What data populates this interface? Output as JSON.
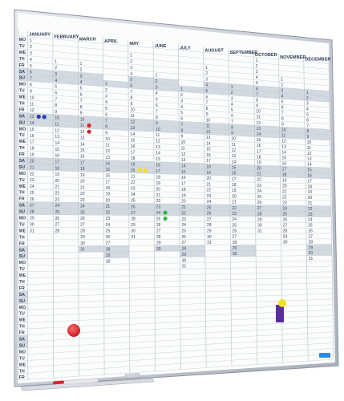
{
  "weekdays": [
    "MO",
    "TU",
    "WE",
    "TH",
    "FR",
    "SA",
    "SU"
  ],
  "month_labels": [
    "JANUARY",
    "FEBRUARY",
    "MARCH",
    "APRIL",
    "MAY",
    "JUNE",
    "JULY",
    "AUGUST",
    "SEPTEMBER",
    "OCTOBER",
    "NOVEMBER",
    "DECEMBER"
  ],
  "month_day_counts": [
    31,
    28,
    31,
    30,
    31,
    30,
    31,
    31,
    30,
    31,
    30,
    31
  ],
  "first_weekday_index": [
    0,
    3,
    3,
    6,
    1,
    4,
    6,
    2,
    5,
    0,
    3,
    5
  ],
  "row_count": 54,
  "colors": {
    "frame": "#c9ced6",
    "frame_shadow": "#9aa2ad",
    "board": "#fbfcfc",
    "weekend_band": "#d3d9e0",
    "grid": "#b9c1cb",
    "text": "#34425a",
    "magnet_blue": "#1f3fb3",
    "magnet_red": "#d8262a",
    "magnet_yellow": "#f2e21c",
    "magnet_green": "#35b44a",
    "block_purple": "#5a2ca0"
  },
  "magnets": [
    {
      "name": "magnet-blue-1",
      "color": "blue",
      "month": 0,
      "day": 13
    },
    {
      "name": "magnet-blue-2",
      "color": "blue",
      "month": 0,
      "day": 13
    },
    {
      "name": "magnet-red-1",
      "color": "red",
      "month": 2,
      "day": 11
    },
    {
      "name": "magnet-red-2",
      "color": "red",
      "month": 2,
      "day": 12
    },
    {
      "name": "magnet-yellow-1",
      "color": "yellow",
      "month": 4,
      "day": 20
    },
    {
      "name": "magnet-yellow-2",
      "color": "yellow",
      "month": 4,
      "day": 20
    },
    {
      "name": "magnet-green-1",
      "color": "green",
      "month": 5,
      "day": 24
    },
    {
      "name": "magnet-green-2",
      "color": "green",
      "month": 5,
      "day": 25
    }
  ]
}
